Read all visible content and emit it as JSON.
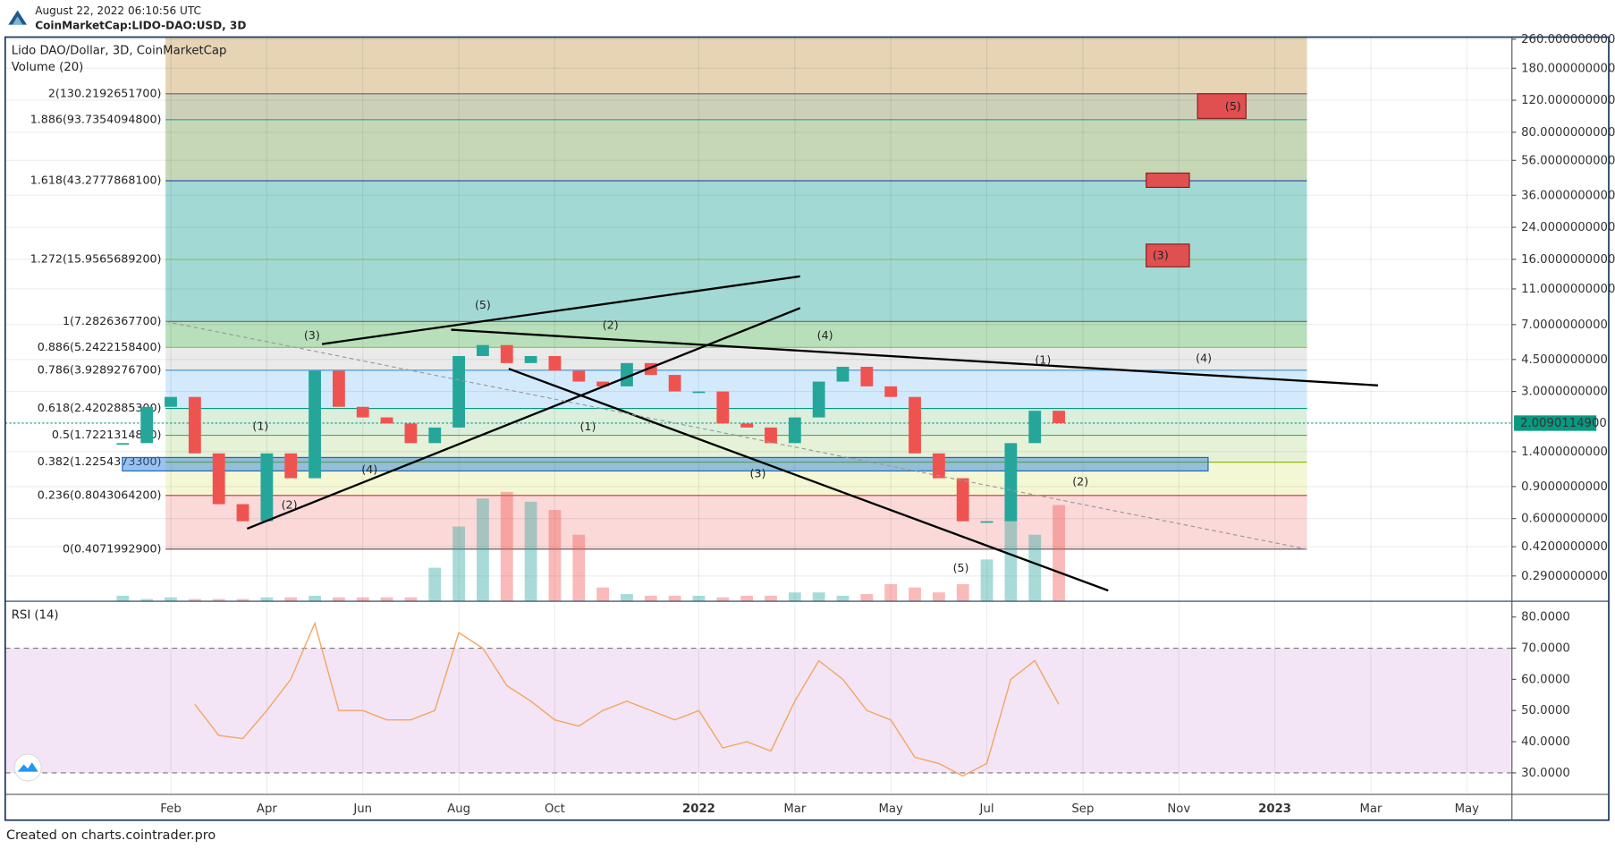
{
  "header": {
    "timestamp": "August 22, 2022 06:10:56 UTC",
    "symbol": "CoinMarketCap:LIDO-DAO:USD, 3D"
  },
  "footer": "Created on charts.cointrader.pro",
  "chart_data": [
    {
      "type": "candlestick",
      "title": "Lido DAO/Dollar, 3D, CoinMarketCap",
      "log_scale": true,
      "grid": true,
      "xlim": [
        -2.45,
        28.94
      ],
      "ylim": [
        0.212,
        267
      ],
      "yticks": [
        {
          "value": 260,
          "label": "260.0000000000"
        },
        {
          "value": 180,
          "label": "180.0000000000"
        },
        {
          "value": 120,
          "label": "120.0000000000"
        },
        {
          "value": 80,
          "label": "80.0000000000"
        },
        {
          "value": 56,
          "label": "56.0000000000"
        },
        {
          "value": 36,
          "label": "36.0000000000"
        },
        {
          "value": 24,
          "label": "24.0000000000"
        },
        {
          "value": 16,
          "label": "16.0000000000"
        },
        {
          "value": 11,
          "label": "11.0000000000"
        },
        {
          "value": 7,
          "label": "7.0000000000"
        },
        {
          "value": 4.5,
          "label": "4.5000000000"
        },
        {
          "value": 3,
          "label": "3.0000000000"
        },
        {
          "value": 1.4,
          "label": "1.4000000000"
        },
        {
          "value": 0.9,
          "label": "0.9000000000"
        },
        {
          "value": 0.6,
          "label": "0.6000000000"
        },
        {
          "value": 0.42,
          "label": "0.4200000000"
        },
        {
          "value": 0.29,
          "label": "0.2900000000"
        }
      ],
      "x": [
        0,
        0.5,
        1,
        1.5,
        2,
        2.5,
        3,
        3.5,
        4,
        4.5,
        5,
        5.5,
        6,
        6.5,
        7,
        7.5,
        8,
        8.5,
        9,
        9.5,
        10,
        10.5,
        11,
        11.5,
        12,
        12.5,
        13,
        13.5,
        14,
        14.5,
        15,
        15.5,
        16,
        16.5,
        17,
        17.5,
        18,
        18.5,
        19,
        19.5
      ],
      "series": [
        {
          "name": "Lido DAO/Dollar",
          "up_color": "#26a69a",
          "down_color": "#ef5350",
          "values": [
            1.56,
            2.47,
            2.8,
            1.37,
            0.72,
            0.58,
            1.37,
            1.0,
            3.9,
            2.47,
            2.16,
            2.0,
            1.56,
            1.9,
            4.7,
            5.4,
            4.3,
            4.7,
            3.9,
            3.4,
            3.2,
            4.3,
            3.7,
            3.0,
            3.0,
            2.0,
            1.9,
            1.56,
            2.16,
            3.4,
            4.1,
            3.2,
            2.8,
            1.37,
            1.0,
            0.58,
            0.58,
            1.56,
            2.35,
            2.01
          ]
        },
        {
          "name": "Volume (20)",
          "type": "bar",
          "ylim": [
            0,
            100
          ],
          "up_color": "rgba(38,166,154,0.4)",
          "down_color": "rgba(239,83,80,0.4)",
          "values": [
            3,
            1,
            2,
            1,
            1,
            1,
            2,
            2,
            3,
            2,
            2,
            2,
            2,
            20,
            45,
            62,
            66,
            60,
            55,
            40,
            8,
            4,
            3,
            3,
            3,
            2,
            3,
            3,
            5,
            5,
            3,
            4,
            10,
            8,
            5,
            10,
            25,
            66,
            40,
            58
          ]
        }
      ],
      "fib_xrange": [
        0.89,
        24.67
      ],
      "fib_levels": [
        {
          "value": 0.40719929,
          "label": "0(0.4071992900)",
          "color": "#555",
          "band_color": "rgba(239,83,80,0.22)"
        },
        {
          "value": 0.80430642,
          "label": "0.236(0.8043064200)",
          "color": "#d32f2f",
          "band_color": "rgba(205,220,57,0.22)"
        },
        {
          "value": 1.22543733,
          "label": "0.382(1.2254373300)",
          "color": "#8bb400",
          "band_color": "rgba(139,195,74,0.22)"
        },
        {
          "value": 1.72213148,
          "label": "0.5(1.7221314800)",
          "color": "#4caf50",
          "band_color": "rgba(76,175,80,0.2)"
        },
        {
          "value": 2.42028853,
          "label": "0.618(2.4202885300)",
          "color": "#089981",
          "band_color": "rgba(33,150,243,0.2)"
        },
        {
          "value": 3.92892767,
          "label": "0.786(3.9289276700)",
          "color": "#3c8fd0",
          "band_color": "rgba(150,150,150,0.2)"
        },
        {
          "value": 5.24221584,
          "label": "0.886(5.2422158400)",
          "color": "#8bc34a",
          "band_color": "rgba(76,175,80,0.4)"
        },
        {
          "value": 7.28263677,
          "label": "1(7.2826367700)",
          "color": "#666",
          "band_color": "rgba(0,150,136,0.36)"
        },
        {
          "value": 15.95656892,
          "label": "1.272(15.9565689200)",
          "color": "#8bc34a",
          "band_color": "rgba(0,150,136,0.36)"
        },
        {
          "value": 43.27778681,
          "label": "1.618(43.2777868100)",
          "color": "#3040b0",
          "band_color": "rgba(120,160,80,0.42)"
        },
        {
          "value": 93.73540948,
          "label": "1.886(93.7354094800)",
          "color": "#26a69a",
          "band_color": "rgba(145,150,100,0.45)"
        },
        {
          "value": 130.21926517,
          "label": "2(130.2192651700)",
          "color": "#666",
          "band_color": "rgba(200,160,90,0.45)"
        }
      ],
      "zones": [
        {
          "x0": -0.01,
          "x1": 22.61,
          "y0": 1.097,
          "y1": 1.3,
          "color": "rgba(33,120,220,0.45)",
          "stroke": "#1565c0"
        },
        {
          "x0": 21.32,
          "x1": 22.22,
          "y0": 14.55,
          "y1": 19.4,
          "color": "#e05050",
          "stroke": "#8b1a1a"
        },
        {
          "x0": 21.32,
          "x1": 22.22,
          "y0": 39.8,
          "y1": 47.7,
          "color": "#e05050",
          "stroke": "#8b1a1a"
        },
        {
          "x0": 22.39,
          "x1": 23.4,
          "y0": 95.3,
          "y1": 130.3,
          "color": "#e05050",
          "stroke": "#8b1a1a"
        }
      ],
      "lines": [
        {
          "points": [
            {
              "x": 4.15,
              "y": 5.47
            },
            {
              "x": 14.11,
              "y": 12.9
            }
          ],
          "color": "#000",
          "dashed": false
        },
        {
          "points": [
            {
              "x": 2.59,
              "y": 0.528
            },
            {
              "x": 14.11,
              "y": 8.63
            }
          ],
          "color": "#000",
          "dashed": false
        },
        {
          "points": [
            {
              "x": 6.84,
              "y": 6.56
            },
            {
              "x": 26.15,
              "y": 3.24
            }
          ],
          "color": "#000",
          "dashed": false
        },
        {
          "points": [
            {
              "x": 8.04,
              "y": 4.0
            },
            {
              "x": 20.53,
              "y": 0.241
            }
          ],
          "color": "#000",
          "dashed": false
        },
        {
          "points": [
            {
              "x": 0.89,
              "y": 7.28
            },
            {
              "x": 24.67,
              "y": 0.407
            }
          ],
          "color": "#999",
          "dashed": true
        }
      ],
      "annotations": [
        {
          "text": "(1)",
          "x": 2.87,
          "y": 1.92,
          "color": "#1a237e"
        },
        {
          "text": "(2)",
          "x": 3.47,
          "y": 0.71,
          "color": "#1a237e"
        },
        {
          "text": "(3)",
          "x": 3.94,
          "y": 6.07,
          "color": "#1a237e"
        },
        {
          "text": "(4)",
          "x": 5.14,
          "y": 1.11,
          "color": "#1a237e"
        },
        {
          "text": "(5)",
          "x": 7.5,
          "y": 8.9,
          "color": "#1a237e"
        },
        {
          "text": "(1)",
          "x": 9.69,
          "y": 1.91,
          "color": "#1a237e"
        },
        {
          "text": "(2)",
          "x": 10.16,
          "y": 6.9,
          "color": "#1a237e"
        },
        {
          "text": "(3)",
          "x": 13.23,
          "y": 1.05,
          "color": "#1a237e"
        },
        {
          "text": "(4)",
          "x": 14.63,
          "y": 6.07,
          "color": "#1a237e"
        },
        {
          "text": "(5)",
          "x": 17.46,
          "y": 0.318,
          "color": "#1a237e"
        },
        {
          "text": "(1)",
          "x": 19.17,
          "y": 4.45,
          "color": "#000"
        },
        {
          "text": "(2)",
          "x": 19.95,
          "y": 0.95,
          "color": "#000"
        },
        {
          "text": "(4)",
          "x": 22.52,
          "y": 4.55,
          "color": "#000"
        },
        {
          "text": "(3)",
          "x": 21.62,
          "y": 16.7,
          "color": "#000"
        },
        {
          "text": "(5)",
          "x": 23.13,
          "y": 110,
          "color": "#000"
        }
      ],
      "last_price": {
        "value": 2.00901149,
        "label": "2.0090114900",
        "color": "#089981"
      }
    },
    {
      "type": "line",
      "xlim": [
        -2.45,
        28.94
      ],
      "ylim": [
        23.1,
        84.9
      ],
      "grid": true,
      "yticks": [
        {
          "value": 80,
          "label": "80.0000"
        },
        {
          "value": 70,
          "label": "70.0000"
        },
        {
          "value": 60,
          "label": "60.0000"
        },
        {
          "value": 50,
          "label": "50.0000"
        },
        {
          "value": 40,
          "label": "40.0000"
        },
        {
          "value": 30,
          "label": "30.0000"
        }
      ],
      "band": [
        30,
        70
      ],
      "band_color": "rgba(156,39,176,0.12)",
      "xticks": [
        {
          "value": 1,
          "label": "Feb"
        },
        {
          "value": 3,
          "label": "Apr"
        },
        {
          "value": 5,
          "label": "Jun"
        },
        {
          "value": 7,
          "label": "Aug"
        },
        {
          "value": 9,
          "label": "Oct"
        },
        {
          "value": 12,
          "label": "2022"
        },
        {
          "value": 14,
          "label": "Mar"
        },
        {
          "value": 16,
          "label": "May"
        },
        {
          "value": 18,
          "label": "Jul"
        },
        {
          "value": 20,
          "label": "Sep"
        },
        {
          "value": 22,
          "label": "Nov"
        },
        {
          "value": 24,
          "label": "2023"
        },
        {
          "value": 26,
          "label": "Mar"
        },
        {
          "value": 28,
          "label": "May"
        }
      ],
      "x": [
        0,
        0.5,
        1,
        1.5,
        2,
        2.5,
        3,
        3.5,
        4,
        4.5,
        5,
        5.5,
        6,
        6.5,
        7,
        7.5,
        8,
        8.5,
        9,
        9.5,
        10,
        10.5,
        11,
        11.5,
        12,
        12.5,
        13,
        13.5,
        14,
        14.5,
        15,
        15.5,
        16,
        16.5,
        17,
        17.5,
        18,
        18.5,
        19,
        19.5
      ],
      "series": [
        {
          "name": "RSI (14)",
          "color": "#f4a460",
          "values": [
            null,
            null,
            null,
            52,
            42,
            41,
            50,
            60,
            78,
            50,
            50,
            47,
            47,
            50,
            75,
            70,
            58,
            53,
            47,
            45,
            50,
            53,
            50,
            47,
            50,
            38,
            40,
            37,
            53,
            66,
            60,
            50,
            47,
            35,
            33,
            29,
            33,
            60,
            66,
            52
          ]
        }
      ]
    }
  ]
}
